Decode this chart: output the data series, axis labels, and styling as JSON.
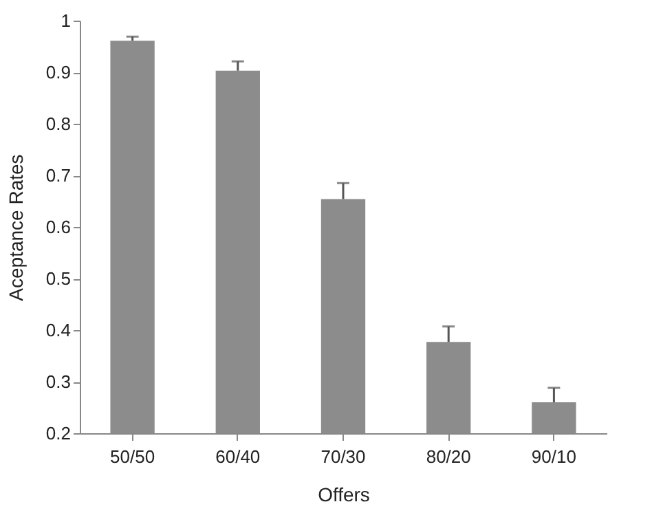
{
  "chart_data": {
    "type": "bar",
    "xlabel": "Offers",
    "ylabel": "Aceptance Rates",
    "categories": [
      "50/50",
      "60/40",
      "70/30",
      "80/20",
      "90/10"
    ],
    "values": [
      0.961,
      0.903,
      0.654,
      0.377,
      0.26
    ],
    "errors": [
      [
        0.961,
        0.969
      ],
      [
        0.903,
        0.921
      ],
      [
        0.654,
        0.685
      ],
      [
        0.377,
        0.407
      ],
      [
        0.26,
        0.288
      ]
    ],
    "color": "#8c8c8c",
    "ylim": [
      0.2,
      1
    ],
    "yticks": [
      0.2,
      0.3,
      0.4,
      0.5,
      0.6,
      0.7,
      0.8,
      0.9,
      1
    ],
    "grid": false
  }
}
